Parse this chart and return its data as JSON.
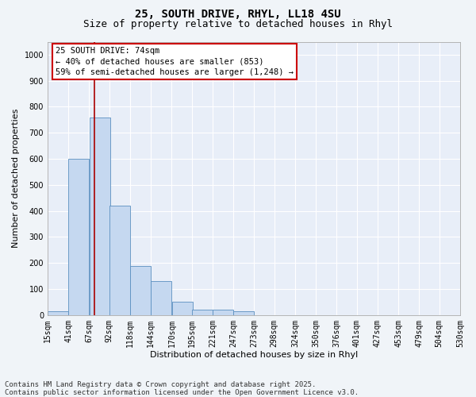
{
  "title_line1": "25, SOUTH DRIVE, RHYL, LL18 4SU",
  "title_line2": "Size of property relative to detached houses in Rhyl",
  "xlabel": "Distribution of detached houses by size in Rhyl",
  "ylabel": "Number of detached properties",
  "bin_labels": [
    "15sqm",
    "41sqm",
    "67sqm",
    "92sqm",
    "118sqm",
    "144sqm",
    "170sqm",
    "195sqm",
    "221sqm",
    "247sqm",
    "273sqm",
    "298sqm",
    "324sqm",
    "350sqm",
    "376sqm",
    "401sqm",
    "427sqm",
    "453sqm",
    "479sqm",
    "504sqm",
    "530sqm"
  ],
  "bin_edges": [
    15,
    41,
    67,
    92,
    118,
    144,
    170,
    195,
    221,
    247,
    273,
    298,
    324,
    350,
    376,
    401,
    427,
    453,
    479,
    504,
    530
  ],
  "bar_heights": [
    15,
    600,
    760,
    420,
    190,
    130,
    50,
    20,
    20,
    15,
    0,
    0,
    0,
    0,
    0,
    0,
    0,
    0,
    0,
    0
  ],
  "bar_color": "#c5d8f0",
  "bar_edge_color": "#5a8fc0",
  "red_line_x": 74,
  "annotation_text": "25 SOUTH DRIVE: 74sqm\n← 40% of detached houses are smaller (853)\n59% of semi-detached houses are larger (1,248) →",
  "annotation_box_color": "#ffffff",
  "annotation_box_edge_color": "#cc0000",
  "ylim": [
    0,
    1050
  ],
  "yticks": [
    0,
    100,
    200,
    300,
    400,
    500,
    600,
    700,
    800,
    900,
    1000
  ],
  "background_color": "#dde6f5",
  "grid_color": "#ffffff",
  "plot_bg": "#e8eef8",
  "footer_text": "Contains HM Land Registry data © Crown copyright and database right 2025.\nContains public sector information licensed under the Open Government Licence v3.0.",
  "title_fontsize": 10,
  "subtitle_fontsize": 9,
  "axis_label_fontsize": 8,
  "tick_fontsize": 7,
  "annotation_fontsize": 7.5,
  "footer_fontsize": 6.5
}
